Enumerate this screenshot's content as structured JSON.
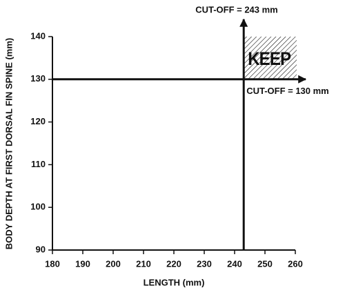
{
  "chart_data": {
    "type": "cutoff",
    "xlabel": "LENGTH (mm)",
    "ylabel": "BODY DEPTH AT FIRST DORSAL FIN SPINE (mm)",
    "xlim": [
      180,
      260
    ],
    "xticks": [
      180,
      190,
      200,
      210,
      220,
      230,
      240,
      250,
      260
    ],
    "ylim": [
      90,
      140
    ],
    "yticks": [
      90,
      100,
      110,
      120,
      130,
      140
    ],
    "cutoffs": [
      {
        "axis": "x",
        "value": 243,
        "label": "CUT-OFF = 243 mm"
      },
      {
        "axis": "y",
        "value": 130,
        "label": "CUT-OFF = 130 mm"
      }
    ],
    "region_label": "KEEP"
  }
}
